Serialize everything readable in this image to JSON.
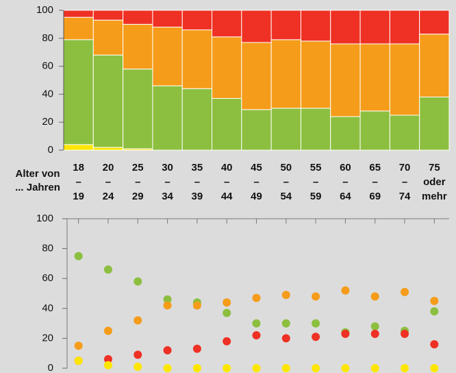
{
  "chart_data": [
    {
      "type": "stacked_bar",
      "x_label": [
        "Alter von",
        "... Jahren"
      ],
      "categories": [
        [
          "18",
          "–",
          "19"
        ],
        [
          "20",
          "–",
          "24"
        ],
        [
          "25",
          "–",
          "29"
        ],
        [
          "30",
          "–",
          "34"
        ],
        [
          "35",
          "–",
          "39"
        ],
        [
          "40",
          "–",
          "44"
        ],
        [
          "45",
          "–",
          "49"
        ],
        [
          "50",
          "–",
          "54"
        ],
        [
          "55",
          "–",
          "59"
        ],
        [
          "60",
          "–",
          "64"
        ],
        [
          "65",
          "–",
          "69"
        ],
        [
          "70",
          "–",
          "74"
        ],
        [
          "75",
          "oder",
          "mehr"
        ]
      ],
      "series": [
        {
          "color": "#ffe600",
          "values": [
            4,
            2,
            1,
            0,
            0,
            0,
            0,
            0,
            0,
            0,
            0,
            0,
            0
          ]
        },
        {
          "color": "#8cbf3f",
          "values": [
            75,
            66,
            57,
            46,
            44,
            37,
            29,
            30,
            30,
            24,
            28,
            25,
            38
          ]
        },
        {
          "color": "#f59c1a",
          "values": [
            16,
            25,
            32,
            42,
            42,
            44,
            48,
            49,
            48,
            52,
            48,
            51,
            45
          ]
        },
        {
          "color": "#ee3124",
          "values": [
            5,
            7,
            10,
            12,
            14,
            19,
            23,
            21,
            22,
            24,
            24,
            24,
            17
          ]
        }
      ],
      "ylim": [
        0,
        100
      ],
      "yticks": [
        0,
        20,
        40,
        60,
        80,
        100
      ]
    },
    {
      "type": "dot",
      "series": [
        {
          "color": "#8cbf3f",
          "values": [
            75,
            66,
            58,
            46,
            44,
            37,
            30,
            30,
            30,
            24,
            28,
            25,
            38
          ]
        },
        {
          "color": "#f59c1a",
          "values": [
            15,
            25,
            32,
            42,
            42,
            44,
            47,
            49,
            48,
            52,
            48,
            51,
            45
          ]
        },
        {
          "color": "#ee3124",
          "values": [
            5,
            6,
            9,
            12,
            13,
            18,
            22,
            20,
            21,
            23,
            23,
            23,
            16
          ]
        },
        {
          "color": "#ffe600",
          "values": [
            5,
            2,
            1,
            0,
            0,
            0,
            0,
            0,
            0,
            0,
            0,
            0,
            0
          ]
        }
      ],
      "ylim": [
        0,
        100
      ],
      "yticks": [
        0,
        20,
        40,
        60,
        80,
        100
      ]
    }
  ]
}
